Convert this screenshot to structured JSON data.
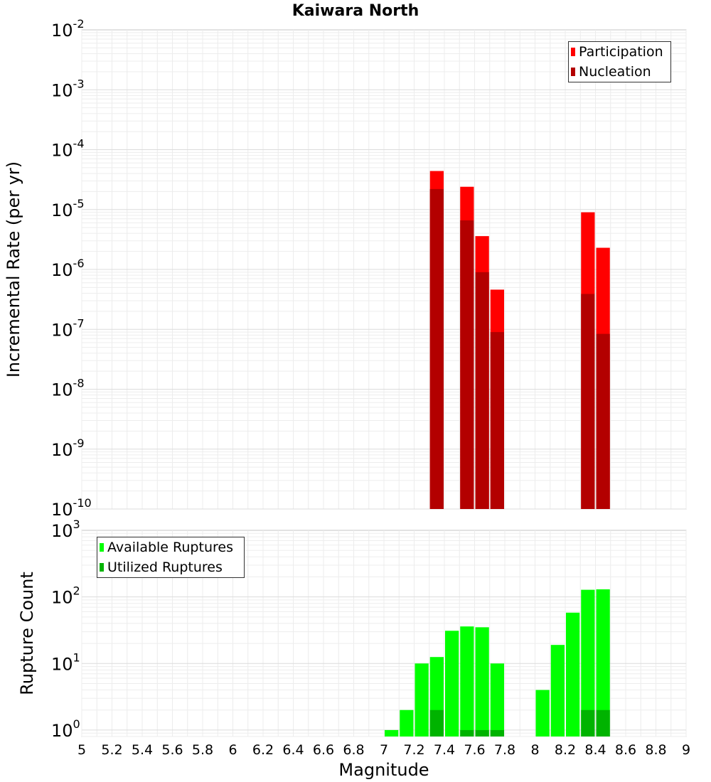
{
  "chart_data": [
    {
      "type": "bar",
      "title": "Kaiwara North",
      "xlabel": "",
      "ylabel": "Incremental Rate (per yr)",
      "yscale": "log",
      "ylim": [
        1e-10,
        0.01
      ],
      "xlim": [
        5,
        9
      ],
      "bin_width": 0.1,
      "yticks": [
        {
          "base": "10",
          "exp": "-10"
        },
        {
          "base": "10",
          "exp": "-9"
        },
        {
          "base": "10",
          "exp": "-8"
        },
        {
          "base": "10",
          "exp": "-7"
        },
        {
          "base": "10",
          "exp": "-6"
        },
        {
          "base": "10",
          "exp": "-5"
        },
        {
          "base": "10",
          "exp": "-4"
        },
        {
          "base": "10",
          "exp": "-3"
        },
        {
          "base": "10",
          "exp": "-2"
        }
      ],
      "legend_position": "top-right",
      "series": [
        {
          "name": "Participation",
          "color": "#ff0000",
          "points": [
            [
              7.35,
              4.4e-05
            ],
            [
              7.55,
              2.4e-05
            ],
            [
              7.65,
              3.6e-06
            ],
            [
              7.75,
              4.6e-07
            ],
            [
              8.35,
              9e-06
            ],
            [
              8.45,
              2.3e-06
            ]
          ]
        },
        {
          "name": "Nucleation",
          "color": "#b30000",
          "points": [
            [
              7.35,
              2.2e-05
            ],
            [
              7.55,
              6.6e-06
            ],
            [
              7.65,
              9e-07
            ],
            [
              7.75,
              9e-08
            ],
            [
              8.35,
              3.9e-07
            ],
            [
              8.45,
              8.4e-08
            ]
          ]
        }
      ]
    },
    {
      "type": "bar",
      "title": "",
      "xlabel": "Magnitude",
      "ylabel": "Rupture Count",
      "yscale": "log",
      "ylim": [
        0.8,
        1000
      ],
      "xlim": [
        5,
        9
      ],
      "bin_width": 0.1,
      "xticks": [
        "5",
        "5.2",
        "5.4",
        "5.6",
        "5.8",
        "6",
        "6.2",
        "6.4",
        "6.6",
        "6.8",
        "7",
        "7.2",
        "7.4",
        "7.6",
        "7.8",
        "8",
        "8.2",
        "8.4",
        "8.6",
        "8.8",
        "9"
      ],
      "yticks": [
        {
          "base": "10",
          "exp": "0"
        },
        {
          "base": "10",
          "exp": "1"
        },
        {
          "base": "10",
          "exp": "2"
        },
        {
          "base": "10",
          "exp": "3"
        }
      ],
      "legend_position": "top-left",
      "series": [
        {
          "name": "Available Ruptures",
          "color": "#00ff00",
          "points": [
            [
              7.05,
              1
            ],
            [
              7.15,
              2
            ],
            [
              7.25,
              10
            ],
            [
              7.35,
              12.5
            ],
            [
              7.45,
              31
            ],
            [
              7.55,
              36
            ],
            [
              7.65,
              35
            ],
            [
              7.75,
              10
            ],
            [
              8.05,
              4
            ],
            [
              8.15,
              19
            ],
            [
              8.25,
              58
            ],
            [
              8.35,
              128
            ],
            [
              8.45,
              130
            ]
          ]
        },
        {
          "name": "Utilized Ruptures",
          "color": "#00b300",
          "points": [
            [
              7.35,
              2
            ],
            [
              7.55,
              1
            ],
            [
              7.65,
              1
            ],
            [
              7.75,
              1
            ],
            [
              8.35,
              2
            ],
            [
              8.45,
              2
            ]
          ]
        }
      ]
    }
  ]
}
